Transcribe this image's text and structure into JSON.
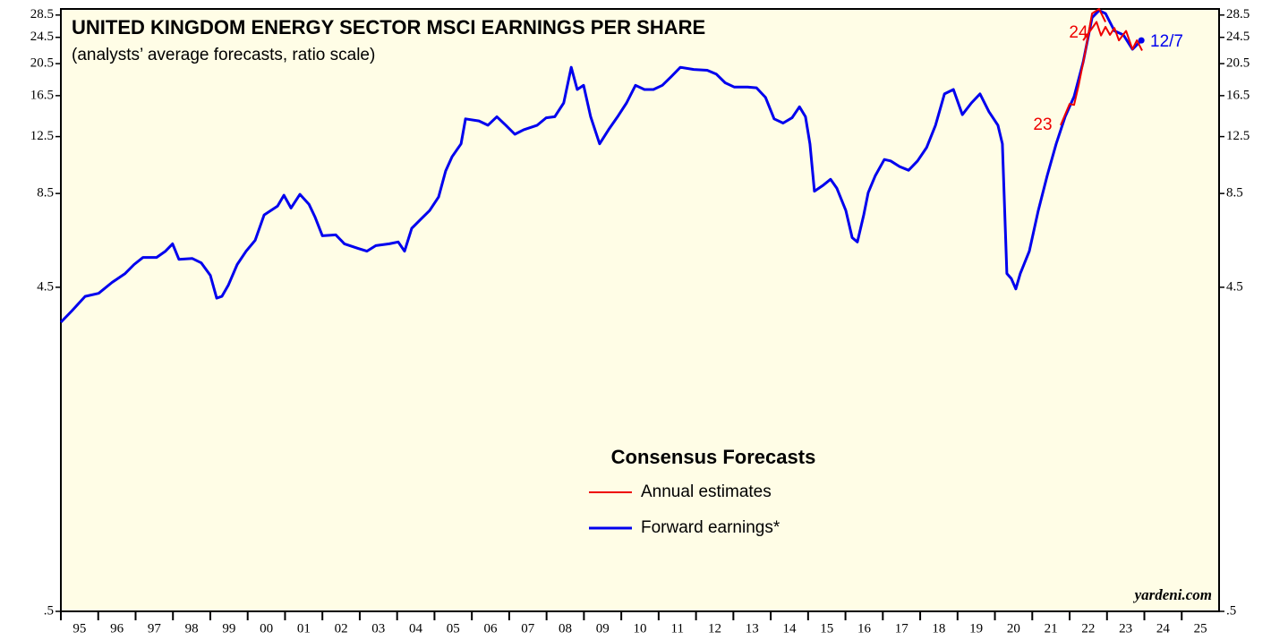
{
  "chart_data": {
    "type": "line",
    "title": "UNITED KINGDOM ENERGY SECTOR MSCI EARNINGS PER SHARE",
    "subtitle": "(analysts’ average forecasts, ratio scale)",
    "legend_title": "Consensus Forecasts",
    "source": "yardeni.com",
    "log_scale": true,
    "xlim": [
      1995,
      2026
    ],
    "xticks": [
      {
        "value": 1995,
        "label": "95"
      },
      {
        "value": 1996,
        "label": "96"
      },
      {
        "value": 1997,
        "label": "97"
      },
      {
        "value": 1998,
        "label": "98"
      },
      {
        "value": 1999,
        "label": "99"
      },
      {
        "value": 2000,
        "label": "00"
      },
      {
        "value": 2001,
        "label": "01"
      },
      {
        "value": 2002,
        "label": "02"
      },
      {
        "value": 2003,
        "label": "03"
      },
      {
        "value": 2004,
        "label": "04"
      },
      {
        "value": 2005,
        "label": "05"
      },
      {
        "value": 2006,
        "label": "06"
      },
      {
        "value": 2007,
        "label": "07"
      },
      {
        "value": 2008,
        "label": "08"
      },
      {
        "value": 2009,
        "label": "09"
      },
      {
        "value": 2010,
        "label": "10"
      },
      {
        "value": 2011,
        "label": "11"
      },
      {
        "value": 2012,
        "label": "12"
      },
      {
        "value": 2013,
        "label": "13"
      },
      {
        "value": 2014,
        "label": "14"
      },
      {
        "value": 2015,
        "label": "15"
      },
      {
        "value": 2016,
        "label": "16"
      },
      {
        "value": 2017,
        "label": "17"
      },
      {
        "value": 2018,
        "label": "18"
      },
      {
        "value": 2019,
        "label": "19"
      },
      {
        "value": 2020,
        "label": "20"
      },
      {
        "value": 2021,
        "label": "21"
      },
      {
        "value": 2022,
        "label": "22"
      },
      {
        "value": 2023,
        "label": "23"
      },
      {
        "value": 2024,
        "label": "24"
      },
      {
        "value": 2025,
        "label": "25"
      }
    ],
    "ylim": [
      0.5,
      29.7
    ],
    "yticks": [
      {
        "value": 0.5,
        "label": ".5"
      },
      4.5,
      8.5,
      12.5,
      16.5,
      20.5,
      24.5,
      28.5
    ],
    "series": [
      {
        "name": "Annual estimates",
        "color": "#ee0000",
        "x": [
          2021.76,
          2022.0,
          2022.12,
          2022.24,
          2022.41,
          2022.6,
          2022.79,
          2022.96,
          null,
          2022.36,
          2022.55,
          2022.72,
          2022.84,
          2022.96,
          2023.08,
          2023.2,
          2023.32,
          2023.51,
          2023.68,
          2023.8,
          2023.94
        ],
        "values": [
          13.5,
          15.6,
          15.5,
          17.7,
          21.9,
          28.8,
          29.7,
          27.2,
          null,
          24.0,
          25.6,
          27.2,
          24.8,
          26.3,
          24.9,
          26.1,
          24.0,
          25.6,
          22.6,
          24.0,
          22.4
        ]
      },
      {
        "name": "Forward earnings*",
        "color": "#0000ee",
        "x": [
          1995.0,
          1995.29,
          1995.65,
          1996.01,
          1996.37,
          1996.72,
          1996.96,
          1997.2,
          1997.56,
          1997.8,
          1997.99,
          1998.16,
          1998.52,
          1998.76,
          1999.0,
          1999.17,
          1999.31,
          1999.48,
          1999.72,
          1999.96,
          2000.2,
          2000.44,
          2000.8,
          2000.97,
          2001.16,
          2001.4,
          2001.64,
          2001.8,
          2002.0,
          2002.36,
          2002.59,
          2002.95,
          2003.19,
          2003.43,
          2003.79,
          2004.03,
          2004.2,
          2004.39,
          2004.63,
          2004.87,
          2005.11,
          2005.3,
          2005.47,
          2005.71,
          2005.83,
          2006.19,
          2006.43,
          2006.67,
          2006.91,
          2007.15,
          2007.39,
          2007.75,
          2007.99,
          2008.22,
          2008.46,
          2008.66,
          2008.82,
          2008.99,
          2009.18,
          2009.42,
          2009.66,
          2009.9,
          2010.14,
          2010.38,
          2010.62,
          2010.86,
          2011.1,
          2011.34,
          2011.58,
          2011.94,
          2012.3,
          2012.54,
          2012.78,
          2013.02,
          2013.38,
          2013.62,
          2013.86,
          2014.09,
          2014.33,
          2014.57,
          2014.77,
          2014.93,
          2015.05,
          2015.17,
          2015.41,
          2015.6,
          2015.77,
          2016.01,
          2016.18,
          2016.32,
          2016.49,
          2016.61,
          2016.8,
          2017.04,
          2017.21,
          2017.45,
          2017.69,
          2017.93,
          2018.17,
          2018.41,
          2018.65,
          2018.89,
          2019.13,
          2019.37,
          2019.6,
          2019.84,
          2020.08,
          2020.2,
          2020.32,
          2020.44,
          2020.56,
          2020.68,
          2020.92,
          2021.16,
          2021.4,
          2021.64,
          2021.88,
          2022.12,
          2022.36,
          2022.6,
          2022.79,
          2022.96,
          2023.2,
          2023.44,
          2023.68,
          2023.92
        ],
        "values": [
          3.55,
          3.83,
          4.23,
          4.32,
          4.65,
          4.94,
          5.25,
          5.51,
          5.51,
          5.75,
          6.04,
          5.44,
          5.47,
          5.31,
          4.88,
          4.18,
          4.23,
          4.56,
          5.25,
          5.75,
          6.19,
          7.35,
          7.8,
          8.4,
          7.7,
          8.45,
          7.9,
          7.26,
          6.38,
          6.42,
          6.04,
          5.86,
          5.75,
          5.97,
          6.04,
          6.12,
          5.75,
          6.71,
          7.13,
          7.57,
          8.3,
          9.9,
          10.9,
          11.9,
          14.1,
          13.9,
          13.5,
          14.3,
          13.5,
          12.7,
          13.1,
          13.5,
          14.2,
          14.3,
          15.7,
          20.0,
          17.2,
          17.7,
          14.3,
          11.9,
          13.1,
          14.3,
          15.7,
          17.7,
          17.2,
          17.2,
          17.7,
          18.8,
          20.0,
          19.7,
          19.6,
          19.1,
          18.0,
          17.5,
          17.5,
          17.4,
          16.3,
          14.1,
          13.7,
          14.2,
          15.3,
          14.3,
          11.9,
          8.63,
          9.0,
          9.36,
          8.8,
          7.57,
          6.3,
          6.12,
          7.35,
          8.55,
          9.6,
          10.7,
          10.6,
          10.2,
          9.95,
          10.6,
          11.6,
          13.5,
          16.7,
          17.2,
          14.5,
          15.7,
          16.7,
          14.8,
          13.5,
          11.9,
          4.94,
          4.77,
          4.45,
          4.94,
          5.75,
          7.57,
          9.6,
          11.9,
          14.3,
          16.4,
          20.7,
          28.0,
          29.4,
          28.8,
          25.6,
          24.9,
          22.6,
          24.0
        ]
      }
    ],
    "annotations": [
      {
        "text": "23",
        "color": "#ee0000"
      },
      {
        "text": "24",
        "color": "#ee0000"
      },
      {
        "text": "12/7",
        "color": "#0000ee"
      }
    ]
  }
}
